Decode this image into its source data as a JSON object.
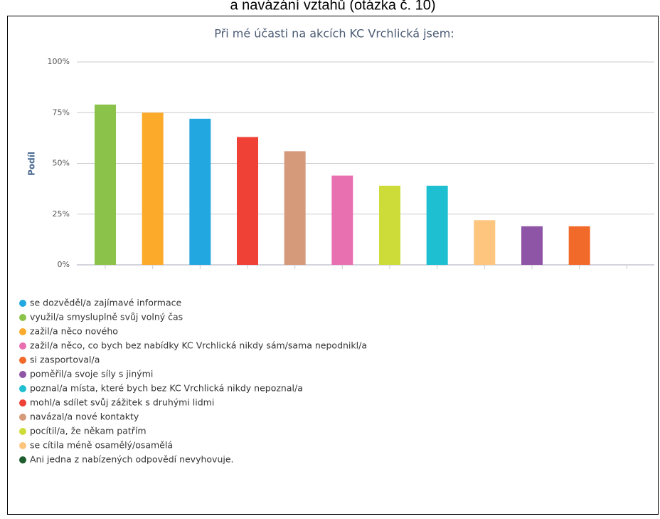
{
  "caption": "a navázání vztahů (otázka č. 10)",
  "chart_data": {
    "type": "bar",
    "title": "Při mé účasti na akcích KC Vrchlická jsem:",
    "y_label": "Podíl",
    "ylim": [
      0,
      100
    ],
    "yticks": [
      {
        "value": 0,
        "label": "0%"
      },
      {
        "value": 25,
        "label": "25%"
      },
      {
        "value": 50,
        "label": "50%"
      },
      {
        "value": 75,
        "label": "75%"
      },
      {
        "value": 100,
        "label": "100%"
      }
    ],
    "grid": true,
    "series": [
      {
        "name": "využil/a smysluplně svůj volný čas",
        "color": "#8bc34a",
        "values": [
          79
        ]
      },
      {
        "name": "zažil/a něco nového",
        "color": "#fbaa2a",
        "values": [
          75
        ]
      },
      {
        "name": "se dozvěděl/a zajímavé informace",
        "color": "#22a7e0",
        "values": [
          72
        ]
      },
      {
        "name": "mohl/a sdílet svůj zážitek s druhými lidmi",
        "color": "#ef4136",
        "values": [
          63
        ]
      },
      {
        "name": "navázal/a nové kontakty",
        "color": "#d59a7a",
        "values": [
          56
        ]
      },
      {
        "name": "zažil/a něco, co bych bez nabídky KC Vrchlická nikdy sám/sama nepodnikl/a",
        "color": "#e86fb0",
        "values": [
          44
        ]
      },
      {
        "name": "pocítil/a, že někam patřím",
        "color": "#cddc39",
        "values": [
          39
        ]
      },
      {
        "name": "poznal/a místa, které bych bez KC Vrchlická nikdy nepoznal/a",
        "color": "#1ebfd0",
        "values": [
          39
        ]
      },
      {
        "name": "se cítila méně osamělý/osamělá",
        "color": "#fdc57e",
        "values": [
          22
        ]
      },
      {
        "name": "poměřil/a svoje síly s jinými",
        "color": "#8e55a6",
        "values": [
          19
        ]
      },
      {
        "name": "si zasportoval/a",
        "color": "#f26a2a",
        "values": [
          19
        ]
      },
      {
        "name": "Ani jedna z nabízených odpovědí nevyhovuje.",
        "color": "#1e5e2e",
        "values": [
          0
        ]
      }
    ],
    "legend_order": [
      2,
      0,
      1,
      5,
      10,
      9,
      7,
      3,
      4,
      6,
      8,
      11
    ]
  }
}
